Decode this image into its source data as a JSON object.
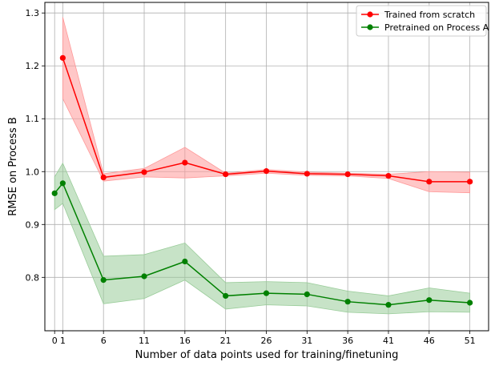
{
  "chart_data": {
    "type": "line",
    "title": "",
    "xlabel": "Number of data points used for training/finetuning",
    "ylabel": "RMSE on Process B",
    "xlim": [
      -1.2,
      53.3
    ],
    "ylim": [
      0.699,
      1.32
    ],
    "xticks": [
      0,
      1,
      6,
      11,
      16,
      21,
      26,
      31,
      36,
      41,
      46,
      51
    ],
    "xtick_labels": [
      "0",
      "1",
      "6",
      "11",
      "16",
      "21",
      "26",
      "31",
      "36",
      "41",
      "46",
      "51"
    ],
    "yticks": [
      0.8,
      0.9,
      1.0,
      1.1,
      1.2,
      1.3
    ],
    "ytick_labels": [
      "0.8",
      "0.9",
      "1.0",
      "1.1",
      "1.2",
      "1.3"
    ],
    "grid": true,
    "legend_position": "top-right",
    "series": [
      {
        "name": "Trained from scratch",
        "color": "#ff0000",
        "band_color": "#ff9999",
        "x": [
          1,
          6,
          11,
          16,
          21,
          26,
          31,
          36,
          41,
          46,
          51
        ],
        "y": [
          1.215,
          0.989,
          0.999,
          1.017,
          0.995,
          1.001,
          0.996,
          0.995,
          0.992,
          0.981,
          0.981
        ],
        "upper": [
          1.292,
          0.996,
          1.006,
          1.046,
          0.997,
          1.004,
          0.999,
          0.997,
          0.995,
          1.0,
          0.999
        ],
        "lower": [
          1.138,
          0.982,
          0.99,
          0.988,
          0.992,
          0.997,
          0.993,
          0.992,
          0.987,
          0.962,
          0.96
        ]
      },
      {
        "name": "Pretrained on Process A",
        "color": "#008000",
        "band_color": "#99cc99",
        "x": [
          0,
          1,
          6,
          11,
          16,
          21,
          26,
          31,
          36,
          41,
          46,
          51
        ],
        "y": [
          0.959,
          0.978,
          0.795,
          0.802,
          0.83,
          0.765,
          0.77,
          0.768,
          0.754,
          0.748,
          0.757,
          0.752
        ],
        "upper": [
          0.99,
          1.016,
          0.84,
          0.843,
          0.865,
          0.79,
          0.792,
          0.79,
          0.774,
          0.765,
          0.78,
          0.77
        ],
        "lower": [
          0.928,
          0.94,
          0.75,
          0.76,
          0.795,
          0.74,
          0.748,
          0.746,
          0.734,
          0.731,
          0.735,
          0.734
        ]
      }
    ]
  }
}
